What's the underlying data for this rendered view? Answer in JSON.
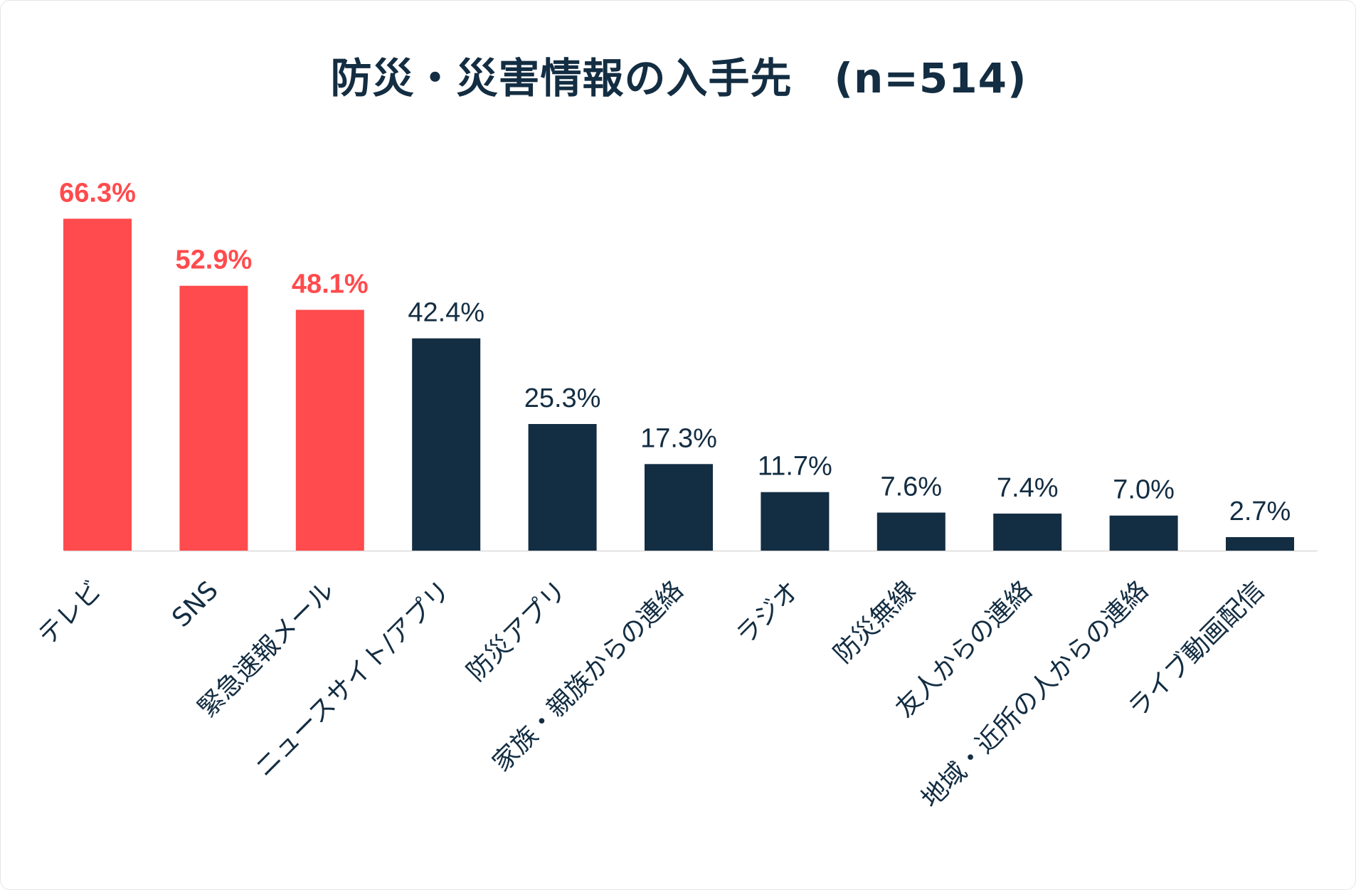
{
  "chart_data": {
    "type": "bar",
    "title": "防災・災害情報の入手先　(n=514)",
    "xlabel": "",
    "ylabel": "",
    "ylim": [
      0,
      70
    ],
    "grid": false,
    "categories": [
      "テレビ",
      "SNS",
      "緊急速報メール",
      "ニュースサイト/アプリ",
      "防災アプリ",
      "家族・親族からの連絡",
      "ラジオ",
      "防災無線",
      "友人からの連絡",
      "地域・近所の人からの連絡",
      "ライブ動画配信"
    ],
    "values": [
      66.3,
      52.9,
      48.1,
      42.4,
      25.3,
      17.3,
      11.7,
      7.6,
      7.4,
      7.0,
      2.7
    ],
    "value_labels": [
      "66.3%",
      "52.9%",
      "48.1%",
      "42.4%",
      "25.3%",
      "17.3%",
      "11.7%",
      "7.6%",
      "7.4%",
      "7.0%",
      "2.7%"
    ],
    "highlighted": [
      true,
      true,
      true,
      false,
      false,
      false,
      false,
      false,
      false,
      false,
      false
    ]
  },
  "colors": {
    "highlight": "#ff4b4d",
    "bar": "#132d42",
    "title": "#132d42",
    "axis": "#e2e2e2"
  }
}
